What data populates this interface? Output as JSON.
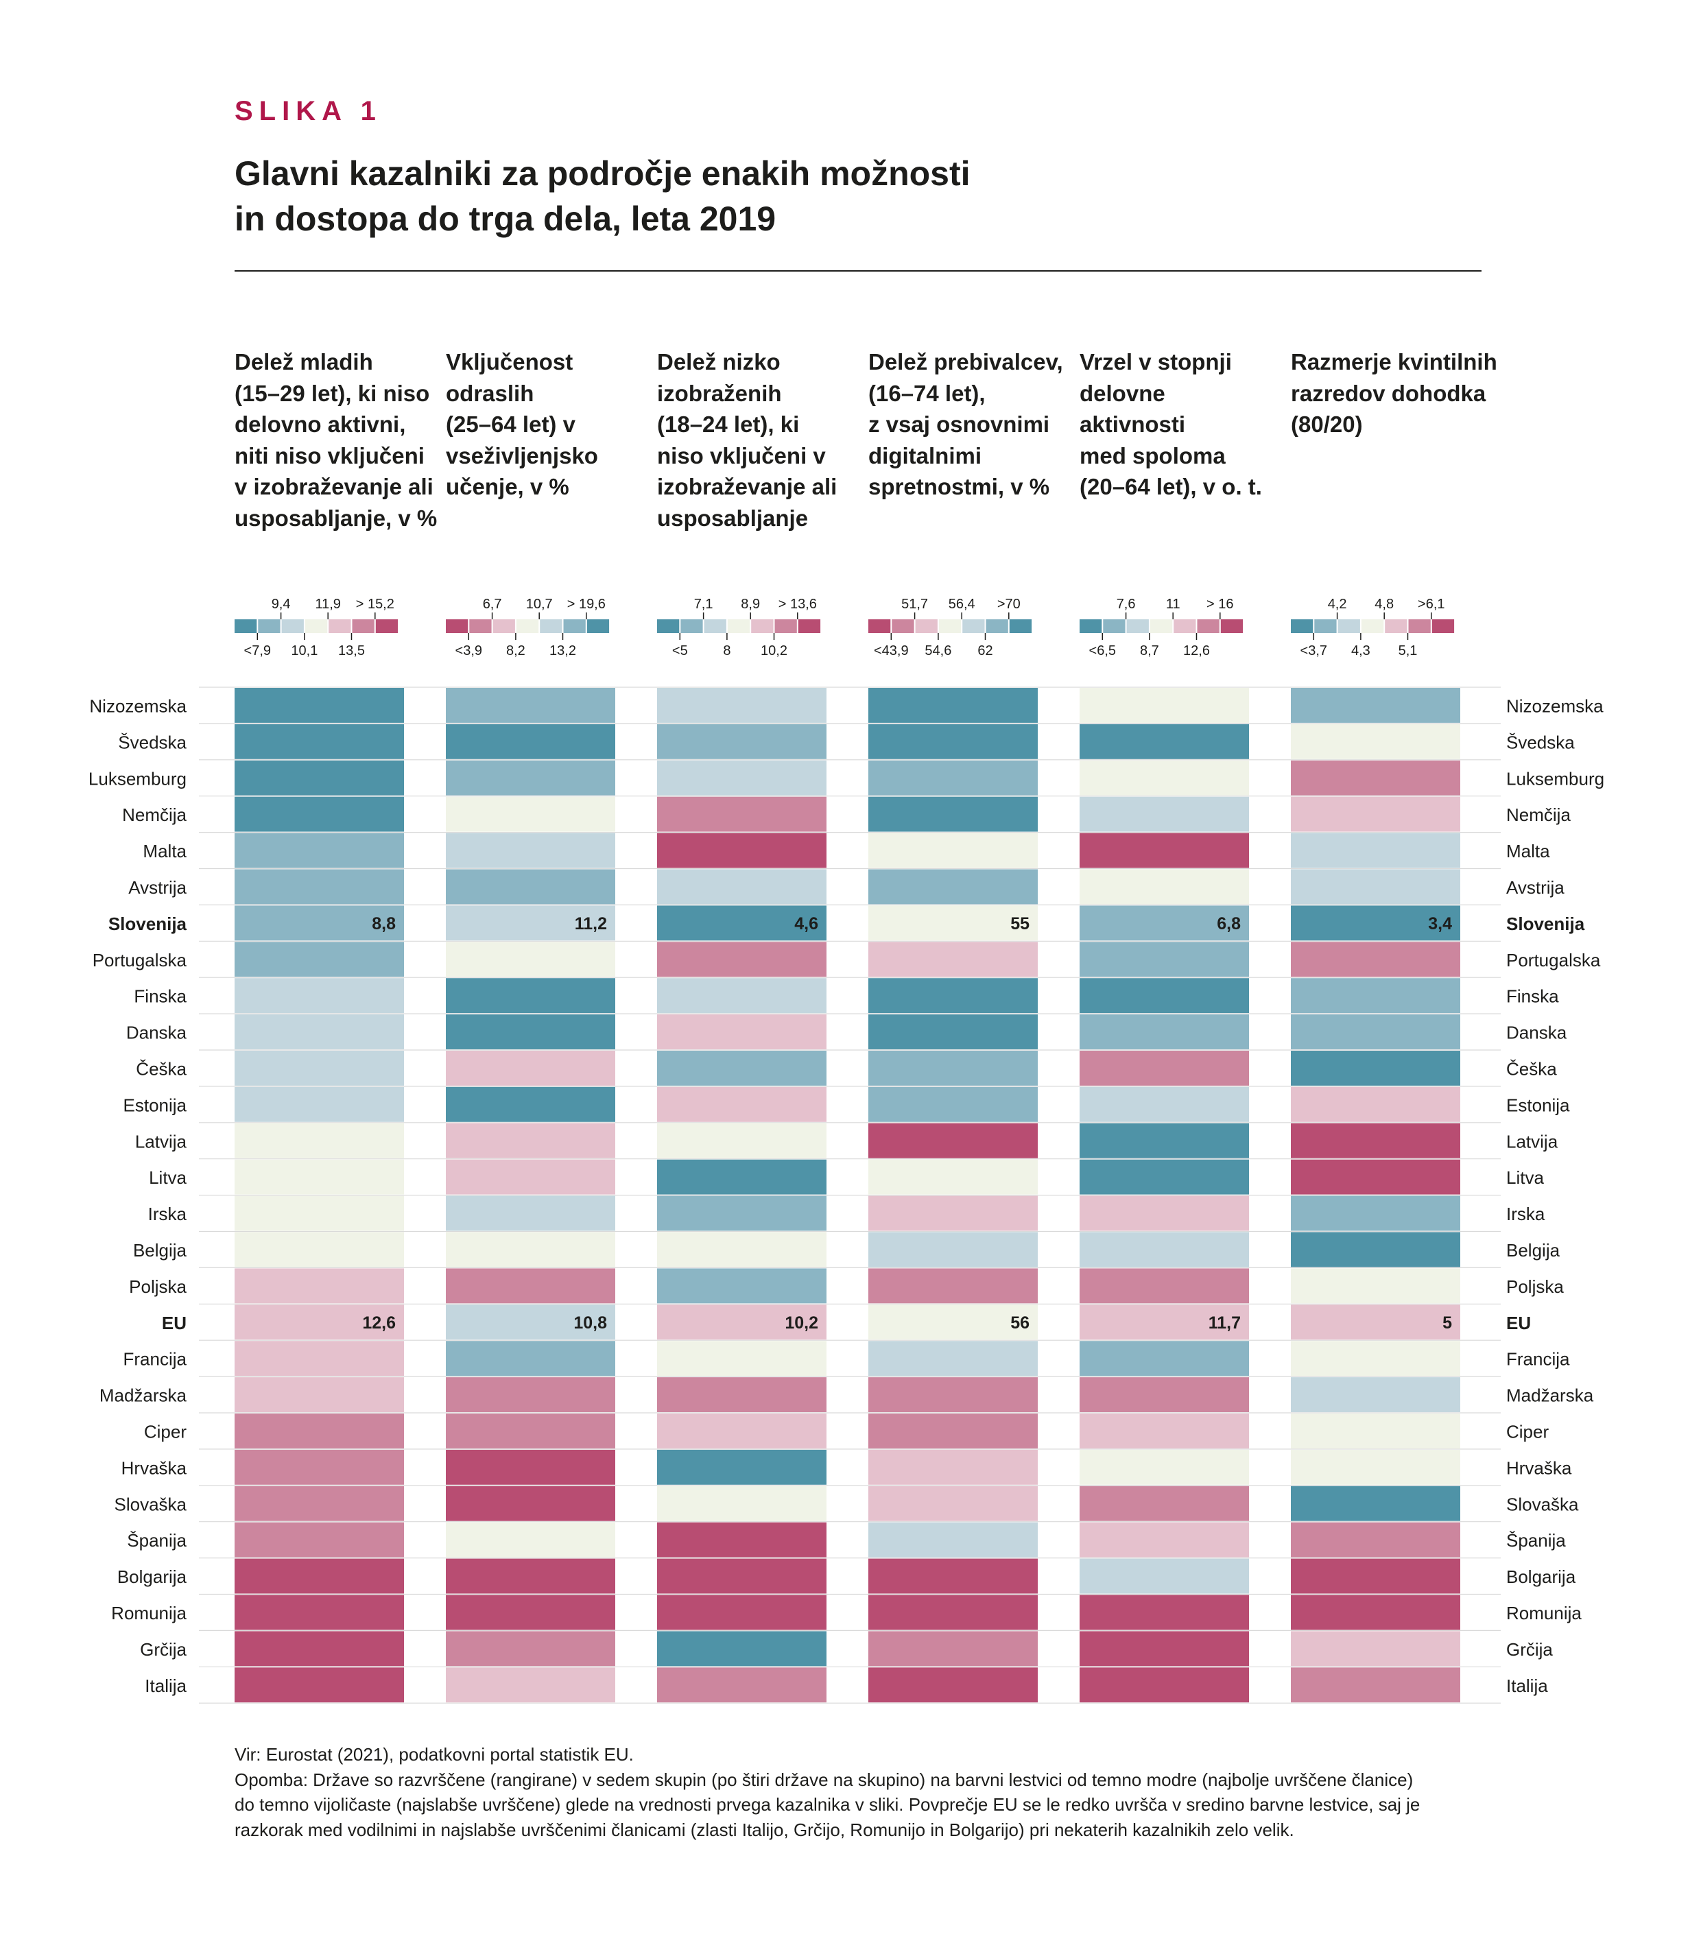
{
  "figure": {
    "label": "SLIKA 1",
    "title_lines": [
      "Glavni kazalniki za področje enakih možnosti",
      "in dostopa do trga dela, leta 2019"
    ]
  },
  "colors": {
    "blue_dark": "#4f93a7",
    "blue_mid": "#8bb5c4",
    "blue_light": "#c3d6de",
    "neutral": "#f0f3e7",
    "pink_light": "#e5c1cd",
    "pink_mid": "#cc869e",
    "pink_dark": "#b84d72",
    "label_accent": "#b0174a"
  },
  "chart_data": {
    "type": "heatmap",
    "countries": [
      "Nizozemska",
      "Švedska",
      "Luksemburg",
      "Nemčija",
      "Malta",
      "Avstrija",
      "Slovenija",
      "Portugalska",
      "Finska",
      "Danska",
      "Češka",
      "Estonija",
      "Latvija",
      "Litva",
      "Irska",
      "Belgija",
      "Poljska",
      "EU",
      "Francija",
      "Madžarska",
      "Ciper",
      "Hrvaška",
      "Slovaška",
      "Španija",
      "Bolgarija",
      "Romunija",
      "Grčija",
      "Italija"
    ],
    "bold_rows": [
      "Slovenija",
      "EU"
    ],
    "color_levels": [
      "blue_dark",
      "blue_mid",
      "blue_light",
      "neutral",
      "pink_light",
      "pink_mid",
      "pink_dark"
    ],
    "indicators": [
      {
        "title_lines": [
          "Delež mladih",
          "(15–29 let), ki niso",
          "delovno aktivni,",
          "niti niso vključeni",
          "v izobraževanje ali",
          "usposabljanje, v %"
        ],
        "legend_colors": [
          "blue_dark",
          "blue_mid",
          "blue_light",
          "neutral",
          "pink_light",
          "pink_mid",
          "pink_dark"
        ],
        "legend_top": [
          "9,4",
          "11,9",
          "> 15,2"
        ],
        "legend_bottom": [
          "<7,9",
          "10,1",
          "13,5"
        ],
        "levels": [
          0,
          0,
          0,
          0,
          1,
          1,
          1,
          1,
          2,
          2,
          2,
          2,
          3,
          3,
          3,
          3,
          4,
          4,
          4,
          4,
          5,
          5,
          5,
          5,
          6,
          6,
          6,
          6
        ],
        "values": {
          "Slovenija": "8,8",
          "EU": "12,6"
        }
      },
      {
        "title_lines": [
          "Vključenost",
          "odraslih",
          "(25–64 let) v",
          "vseživljenjsko",
          "učenje, v %"
        ],
        "legend_colors": [
          "pink_dark",
          "pink_mid",
          "pink_light",
          "neutral",
          "blue_light",
          "blue_mid",
          "blue_dark"
        ],
        "legend_top": [
          "6,7",
          "10,7",
          "> 19,6"
        ],
        "legend_bottom": [
          "<3,9",
          "8,2",
          "13,2"
        ],
        "levels": [
          1,
          0,
          1,
          3,
          2,
          1,
          2,
          3,
          0,
          0,
          4,
          0,
          4,
          4,
          2,
          3,
          5,
          2,
          1,
          5,
          5,
          6,
          6,
          3,
          6,
          6,
          5,
          4
        ],
        "values": {
          "Slovenija": "11,2",
          "EU": "10,8"
        }
      },
      {
        "title_lines": [
          "Delež nizko",
          "izobraženih",
          "(18–24 let), ki",
          "niso vključeni v",
          "izobraževanje ali",
          "usposabljanje"
        ],
        "legend_colors": [
          "blue_dark",
          "blue_mid",
          "blue_light",
          "neutral",
          "pink_light",
          "pink_mid",
          "pink_dark"
        ],
        "legend_top": [
          "7,1",
          "8,9",
          "> 13,6"
        ],
        "legend_bottom": [
          "<5",
          "8",
          "10,2"
        ],
        "levels": [
          2,
          1,
          2,
          5,
          6,
          2,
          0,
          5,
          2,
          4,
          1,
          4,
          3,
          0,
          1,
          3,
          1,
          4,
          3,
          5,
          4,
          0,
          3,
          6,
          6,
          6,
          0,
          5
        ],
        "values": {
          "Slovenija": "4,6",
          "EU": "10,2"
        }
      },
      {
        "title_lines": [
          "Delež prebivalcev,",
          "(16–74 let),",
          "z vsaj osnovnimi",
          "digitalnimi",
          "spretnostmi, v %"
        ],
        "legend_colors": [
          "pink_dark",
          "pink_mid",
          "pink_light",
          "neutral",
          "blue_light",
          "blue_mid",
          "blue_dark"
        ],
        "legend_top": [
          "51,7",
          "56,4",
          ">70"
        ],
        "legend_bottom": [
          "<43,9",
          "54,6",
          "62"
        ],
        "levels": [
          0,
          0,
          1,
          0,
          3,
          1,
          3,
          4,
          0,
          0,
          1,
          1,
          6,
          3,
          4,
          2,
          5,
          3,
          2,
          5,
          5,
          4,
          4,
          2,
          6,
          6,
          5,
          6
        ],
        "values": {
          "Slovenija": "55",
          "EU": "56"
        }
      },
      {
        "title_lines": [
          "Vrzel v stopnji",
          "delovne",
          "aktivnosti",
          "med spoloma",
          "(20–64 let), v o. t."
        ],
        "legend_colors": [
          "blue_dark",
          "blue_mid",
          "blue_light",
          "neutral",
          "pink_light",
          "pink_mid",
          "pink_dark"
        ],
        "legend_top": [
          "7,6",
          "11",
          "> 16"
        ],
        "legend_bottom": [
          "<6,5",
          "8,7",
          "12,6"
        ],
        "levels": [
          3,
          0,
          3,
          2,
          6,
          3,
          1,
          1,
          0,
          1,
          5,
          2,
          0,
          0,
          4,
          2,
          5,
          4,
          1,
          5,
          4,
          3,
          5,
          4,
          2,
          6,
          6,
          6
        ],
        "values": {
          "Slovenija": "6,8",
          "EU": "11,7"
        }
      },
      {
        "title_lines": [
          "Razmerje kvintilnih",
          "razredov dohodka",
          "(80/20)"
        ],
        "legend_colors": [
          "blue_dark",
          "blue_mid",
          "blue_light",
          "neutral",
          "pink_light",
          "pink_mid",
          "pink_dark"
        ],
        "legend_top": [
          "4,2",
          "4,8",
          ">6,1"
        ],
        "legend_bottom": [
          "<3,7",
          "4,3",
          "5,1"
        ],
        "levels": [
          1,
          3,
          5,
          4,
          2,
          2,
          0,
          5,
          1,
          1,
          0,
          4,
          6,
          6,
          1,
          0,
          3,
          4,
          3,
          2,
          3,
          3,
          0,
          5,
          6,
          6,
          4,
          5
        ],
        "values": {
          "Slovenija": "3,4",
          "EU": "5"
        }
      }
    ]
  },
  "footer": {
    "source": "Vir: Eurostat (2021), podatkovni portal statistik EU.",
    "note_lines": [
      "Opomba: Države so razvrščene (rangirane) v sedem skupin (po štiri države na skupino) na barvni lestvici od temno modre (najbolje uvrščene članice)",
      "do temno vijoličaste (najslabše uvrščene) glede na vrednosti prvega kazalnika v sliki. Povprečje EU se le redko uvršča v sredino barvne lestvice, saj je",
      "razkorak med vodilnimi in najslabše uvrščenimi članicami (zlasti Italijo, Grčijo, Romunijo in Bolgarijo) pri nekaterih kazalnikih zelo velik."
    ]
  }
}
